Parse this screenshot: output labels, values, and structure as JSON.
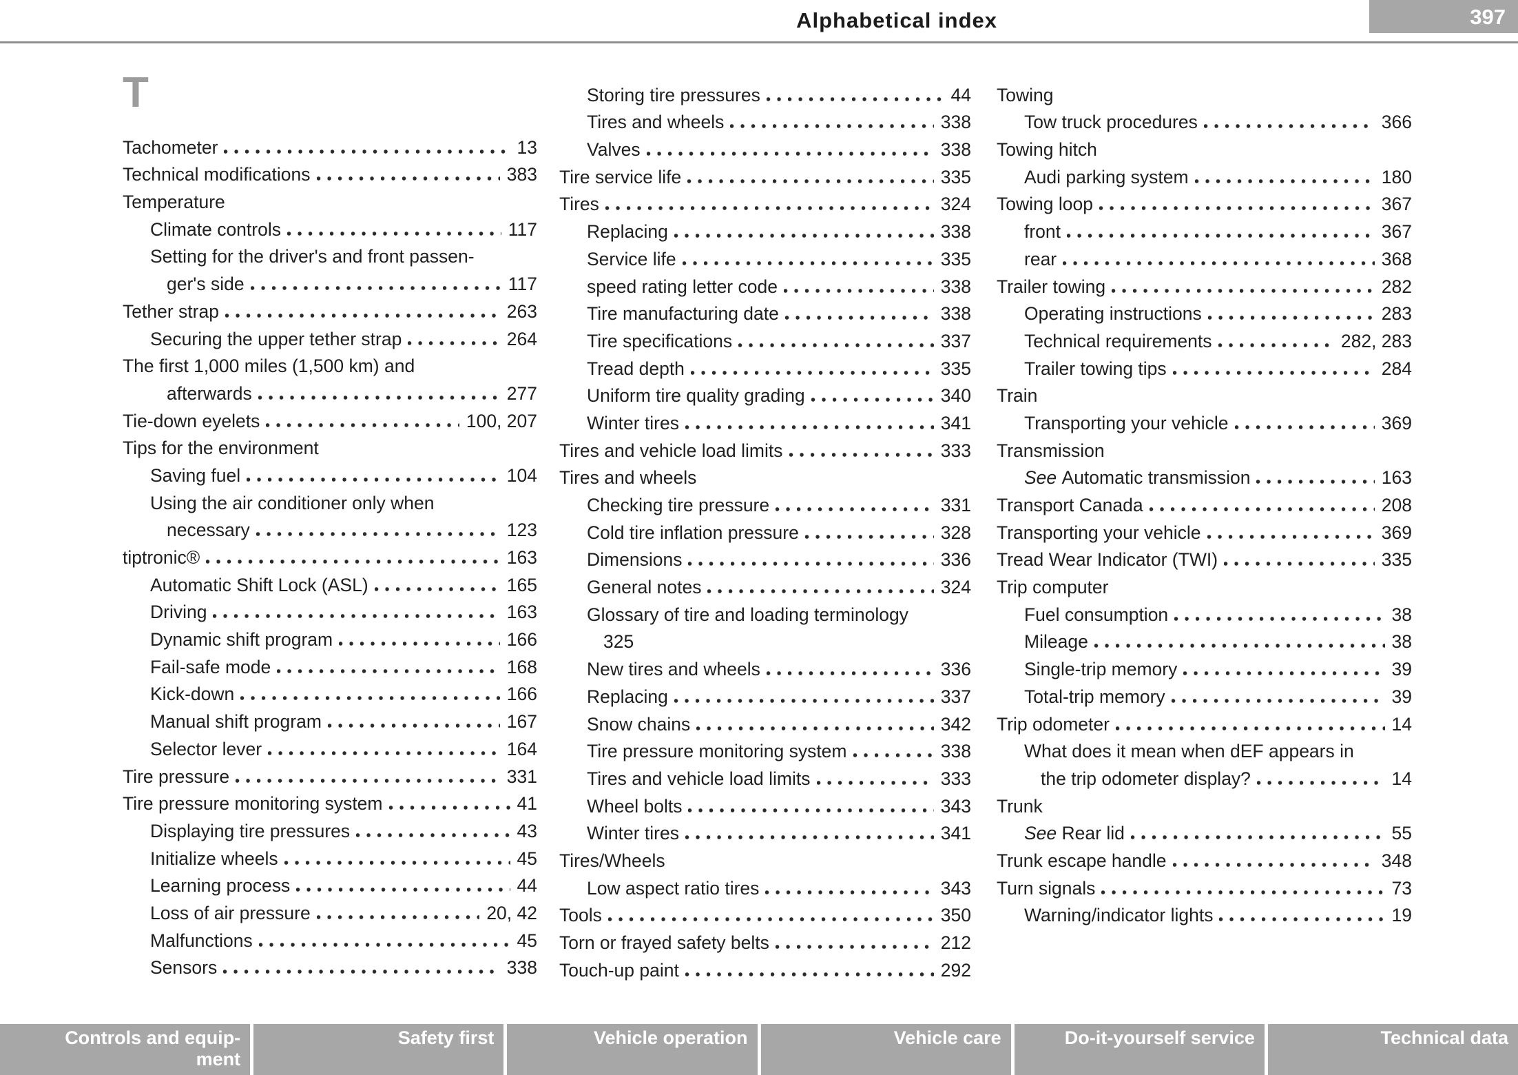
{
  "header": {
    "title": "Alphabetical index",
    "page_number": "397"
  },
  "section": {
    "letter": "T"
  },
  "colors": {
    "text": "#1f1f1f",
    "rule_gray": "#8f8f8f",
    "section_letter_gray": "#9c9c9c",
    "page_number_badge_bg": "#a7a7a7",
    "footer_tab_bg": "#a7a7a7",
    "footer_tab_text": "#ffffff"
  },
  "index": {
    "columns": [
      {
        "entries": [
          {
            "label": "Tachometer",
            "page": "13",
            "indent": 0
          },
          {
            "label": "Technical modifications",
            "page": "383",
            "indent": 0
          },
          {
            "label": "Temperature",
            "page": null,
            "indent": 0
          },
          {
            "label": "Climate controls",
            "page": "117",
            "indent": 1
          },
          {
            "label": "Setting for the driver's and front passen-",
            "page": null,
            "indent": 1
          },
          {
            "label": "ger's side",
            "page": "117",
            "indent": 2
          },
          {
            "label": "Tether strap",
            "page": "263",
            "indent": 0
          },
          {
            "label": "Securing the upper tether strap",
            "page": "264",
            "indent": 1
          },
          {
            "label": "The first 1,000 miles (1,500 km) and",
            "page": null,
            "indent": 0
          },
          {
            "label": "afterwards",
            "page": "277",
            "indent": 2
          },
          {
            "label": "Tie-down eyelets",
            "page": "100, 207",
            "indent": 0
          },
          {
            "label": "Tips for the environment",
            "page": null,
            "indent": 0
          },
          {
            "label": "Saving fuel",
            "page": "104",
            "indent": 1
          },
          {
            "label": "Using the air conditioner only when",
            "page": null,
            "indent": 1
          },
          {
            "label": "necessary",
            "page": "123",
            "indent": 2
          },
          {
            "label": "tiptronic®",
            "page": "163",
            "indent": 0
          },
          {
            "label": "Automatic Shift Lock (ASL)",
            "page": "165",
            "indent": 1
          },
          {
            "label": "Driving",
            "page": "163",
            "indent": 1
          },
          {
            "label": "Dynamic shift program",
            "page": "166",
            "indent": 1
          },
          {
            "label": "Fail-safe mode",
            "page": "168",
            "indent": 1
          },
          {
            "label": "Kick-down",
            "page": "166",
            "indent": 1
          },
          {
            "label": "Manual shift program",
            "page": "167",
            "indent": 1
          },
          {
            "label": "Selector lever",
            "page": "164",
            "indent": 1
          },
          {
            "label": "Tire pressure",
            "page": "331",
            "indent": 0
          },
          {
            "label": "Tire pressure monitoring system",
            "page": "41",
            "indent": 0
          },
          {
            "label": "Displaying tire pressures",
            "page": "43",
            "indent": 1
          },
          {
            "label": "Initialize wheels",
            "page": "45",
            "indent": 1
          },
          {
            "label": "Learning process",
            "page": "44",
            "indent": 1
          },
          {
            "label": "Loss of air pressure",
            "page": "20, 42",
            "indent": 1
          },
          {
            "label": "Malfunctions",
            "page": "45",
            "indent": 1
          },
          {
            "label": "Sensors",
            "page": "338",
            "indent": 1
          }
        ]
      },
      {
        "entries": [
          {
            "label": "Storing tire pressures",
            "page": "44",
            "indent": 1
          },
          {
            "label": "Tires and wheels",
            "page": "338",
            "indent": 1
          },
          {
            "label": "Valves",
            "page": "338",
            "indent": 1
          },
          {
            "label": "Tire service life",
            "page": "335",
            "indent": 0
          },
          {
            "label": "Tires",
            "page": "324",
            "indent": 0
          },
          {
            "label": "Replacing",
            "page": "338",
            "indent": 1
          },
          {
            "label": "Service life",
            "page": "335",
            "indent": 1
          },
          {
            "label": "speed rating letter code",
            "page": "338",
            "indent": 1
          },
          {
            "label": "Tire manufacturing date",
            "page": "338",
            "indent": 1
          },
          {
            "label": "Tire specifications",
            "page": "337",
            "indent": 1
          },
          {
            "label": "Tread depth",
            "page": "335",
            "indent": 1
          },
          {
            "label": "Uniform tire quality grading",
            "page": "340",
            "indent": 1
          },
          {
            "label": "Winter tires",
            "page": "341",
            "indent": 1
          },
          {
            "label": "Tires and vehicle load limits",
            "page": "333",
            "indent": 0
          },
          {
            "label": "Tires and wheels",
            "page": null,
            "indent": 0
          },
          {
            "label": "Checking tire pressure",
            "page": "331",
            "indent": 1
          },
          {
            "label": "Cold tire inflation pressure",
            "page": "328",
            "indent": 1
          },
          {
            "label": "Dimensions",
            "page": "336",
            "indent": 1
          },
          {
            "label": "General notes",
            "page": "324",
            "indent": 1
          },
          {
            "label": "Glossary of tire and loading terminology",
            "page": null,
            "indent": 1
          },
          {
            "label": "325",
            "page": null,
            "indent": 2
          },
          {
            "label": "New tires and wheels",
            "page": "336",
            "indent": 1
          },
          {
            "label": "Replacing",
            "page": "337",
            "indent": 1
          },
          {
            "label": "Snow chains",
            "page": "342",
            "indent": 1
          },
          {
            "label": "Tire pressure monitoring system",
            "page": "338",
            "indent": 1
          },
          {
            "label": "Tires and vehicle load limits",
            "page": "333",
            "indent": 1
          },
          {
            "label": "Wheel bolts",
            "page": "343",
            "indent": 1
          },
          {
            "label": "Winter tires",
            "page": "341",
            "indent": 1
          },
          {
            "label": "Tires/Wheels",
            "page": null,
            "indent": 0
          },
          {
            "label": "Low aspect ratio tires",
            "page": "343",
            "indent": 1
          },
          {
            "label": "Tools",
            "page": "350",
            "indent": 0
          },
          {
            "label": "Torn or frayed safety belts",
            "page": "212",
            "indent": 0
          },
          {
            "label": "Touch-up paint",
            "page": "292",
            "indent": 0
          }
        ]
      },
      {
        "entries": [
          {
            "label": "Towing",
            "page": null,
            "indent": 0
          },
          {
            "label": "Tow truck procedures",
            "page": "366",
            "indent": 1
          },
          {
            "label": "Towing hitch",
            "page": null,
            "indent": 0
          },
          {
            "label": "Audi parking system",
            "page": "180",
            "indent": 1
          },
          {
            "label": "Towing loop",
            "page": "367",
            "indent": 0
          },
          {
            "label": "front",
            "page": "367",
            "indent": 1
          },
          {
            "label": "rear",
            "page": "368",
            "indent": 1
          },
          {
            "label": "Trailer towing",
            "page": "282",
            "indent": 0
          },
          {
            "label": "Operating instructions",
            "page": "283",
            "indent": 1
          },
          {
            "label": "Technical requirements",
            "page": "282, 283",
            "indent": 1
          },
          {
            "label": "Trailer towing tips",
            "page": "284",
            "indent": 1
          },
          {
            "label": "Train",
            "page": null,
            "indent": 0
          },
          {
            "label": "Transporting your vehicle",
            "page": "369",
            "indent": 1
          },
          {
            "label": "Transmission",
            "page": null,
            "indent": 0
          },
          {
            "it": "See",
            "label": "Automatic transmission",
            "page": "163",
            "indent": 1
          },
          {
            "label": "Transport Canada",
            "page": "208",
            "indent": 0
          },
          {
            "label": "Transporting your vehicle",
            "page": "369",
            "indent": 0
          },
          {
            "label": "Tread Wear Indicator (TWI)",
            "page": "335",
            "indent": 0
          },
          {
            "label": "Trip computer",
            "page": null,
            "indent": 0
          },
          {
            "label": "Fuel consumption",
            "page": "38",
            "indent": 1
          },
          {
            "label": "Mileage",
            "page": "38",
            "indent": 1
          },
          {
            "label": "Single-trip memory",
            "page": "39",
            "indent": 1
          },
          {
            "label": "Total-trip memory",
            "page": "39",
            "indent": 1
          },
          {
            "label": "Trip odometer",
            "page": "14",
            "indent": 0
          },
          {
            "label": "What does it mean when dEF appears in",
            "page": null,
            "indent": 1
          },
          {
            "label": "the trip odometer display?",
            "page": "14",
            "indent": 2
          },
          {
            "label": "Trunk",
            "page": null,
            "indent": 0
          },
          {
            "it": "See",
            "label": "Rear lid",
            "page": "55",
            "indent": 1
          },
          {
            "label": "Trunk escape handle",
            "page": "348",
            "indent": 0
          },
          {
            "label": "Turn signals",
            "page": "73",
            "indent": 0
          },
          {
            "label": "Warning/indicator lights",
            "page": "19",
            "indent": 1
          }
        ]
      }
    ]
  },
  "footer": {
    "tabs": [
      {
        "id": "controls-and-equipment",
        "label": "Controls and equip-ment"
      },
      {
        "id": "safety-first",
        "label": "Safety first"
      },
      {
        "id": "vehicle-operation",
        "label": "Vehicle operation"
      },
      {
        "id": "vehicle-care",
        "label": "Vehicle care"
      },
      {
        "id": "do-it-yourself-service",
        "label": "Do-it-yourself service"
      },
      {
        "id": "technical-data",
        "label": "Technical data"
      }
    ]
  }
}
